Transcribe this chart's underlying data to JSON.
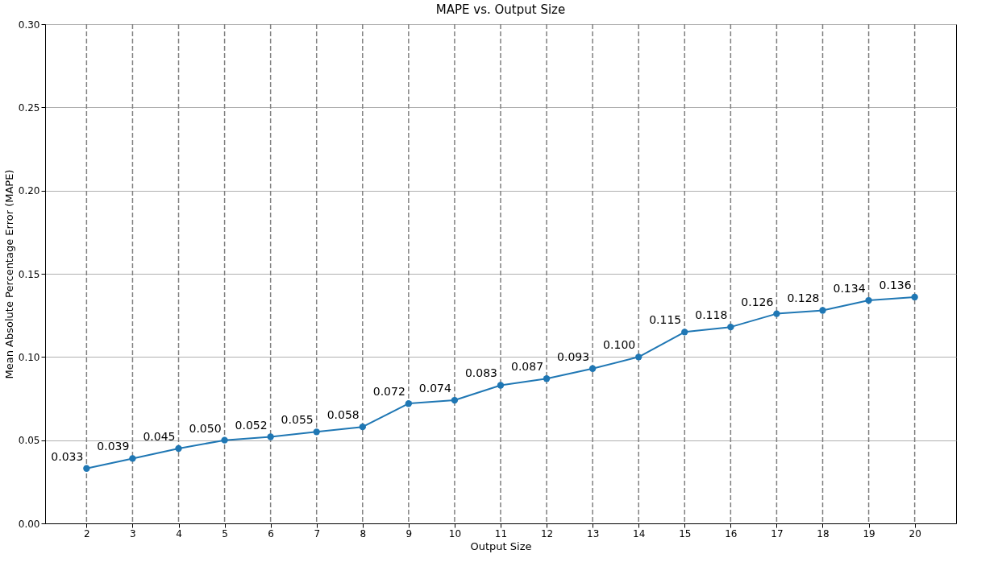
{
  "chart_data": {
    "type": "line",
    "title": "MAPE vs. Output Size",
    "xlabel": "Output Size",
    "ylabel": "Mean Absolute Percentage Error (MAPE)",
    "x": [
      2,
      3,
      4,
      5,
      6,
      7,
      8,
      9,
      10,
      11,
      12,
      13,
      14,
      15,
      16,
      17,
      18,
      19,
      20
    ],
    "series": [
      {
        "color": "#1f77b4",
        "values": [
          0.033,
          0.039,
          0.045,
          0.05,
          0.052,
          0.055,
          0.058,
          0.072,
          0.074,
          0.083,
          0.087,
          0.093,
          0.1,
          0.115,
          0.118,
          0.126,
          0.128,
          0.134,
          0.136
        ],
        "value_labels": [
          "0.033",
          "0.039",
          "0.045",
          "0.050",
          "0.052",
          "0.055",
          "0.058",
          "0.072",
          "0.074",
          "0.083",
          "0.087",
          "0.093",
          "0.100",
          "0.115",
          "0.118",
          "0.126",
          "0.128",
          "0.134",
          "0.136"
        ]
      }
    ],
    "xlim": [
      1.1,
      20.9
    ],
    "xticks": [
      2,
      3,
      4,
      5,
      6,
      7,
      8,
      9,
      10,
      11,
      12,
      13,
      14,
      15,
      16,
      17,
      18,
      19,
      20
    ],
    "ylim": [
      0,
      0.3
    ],
    "yticks": [
      {
        "value": 0,
        "label": "0.00"
      },
      {
        "value": 0.05,
        "label": "0.05"
      },
      {
        "value": 0.1,
        "label": "0.10"
      },
      {
        "value": 0.15,
        "label": "0.15"
      },
      {
        "value": 0.2,
        "label": "0.20"
      },
      {
        "value": 0.25,
        "label": "0.25"
      },
      {
        "value": 0.3,
        "label": "0.30"
      }
    ],
    "grid": true,
    "marker": "circle",
    "line_style": "solid"
  }
}
